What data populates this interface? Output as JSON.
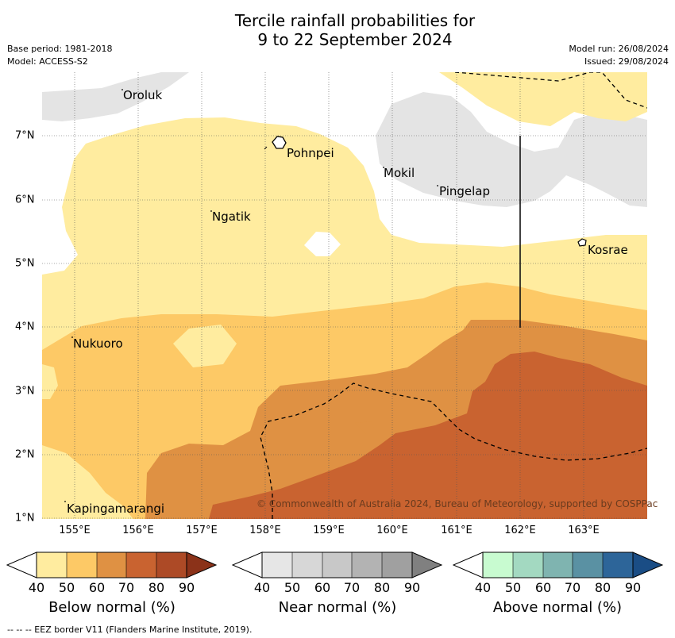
{
  "title_line1": "Tercile rainfall probabilities for",
  "title_line2": "9 to 22 September 2024",
  "base_period": "Base period: 1981-2018",
  "model": "Model: ACCESS-S2",
  "model_run": "Model run: 26/08/2024",
  "issued": "Issued: 29/08/2024",
  "x_ticks": [
    "155°E",
    "156°E",
    "157°E",
    "158°E",
    "159°E",
    "160°E",
    "161°E",
    "162°E",
    "163°E"
  ],
  "y_ticks": [
    "7°N",
    "6°N",
    "5°N",
    "4°N",
    "3°N",
    "2°N",
    "1°N"
  ],
  "places": {
    "oroluk": "Oroluk",
    "pohnpei": "Pohnpei",
    "mokil": "Mokil",
    "pingelap": "Pingelap",
    "ngatik": "Ngatik",
    "kosrae": "Kosrae",
    "nukuoro": "Nukuoro",
    "kapingamarangi": "Kapingamarangi"
  },
  "copyright": "© Commonwealth of Australia 2024, Bureau of Meteorology, supported by COSPPac",
  "colorbars": {
    "ticks": [
      "40",
      "50",
      "60",
      "70",
      "80",
      "90"
    ],
    "below": {
      "label": "Below normal (%)",
      "colors": [
        "#ffffff",
        "#ffec9f",
        "#fdc966",
        "#df9143",
        "#c96330",
        "#ad4a26",
        "#8b3219"
      ]
    },
    "near": {
      "label": "Near normal (%)",
      "colors": [
        "#ffffff",
        "#e6e6e6",
        "#d7d7d7",
        "#c8c8c8",
        "#b3b3b3",
        "#a0a0a0",
        "#808080"
      ]
    },
    "above": {
      "label": "Above normal (%)",
      "colors": [
        "#ffffff",
        "#c8fbd0",
        "#a3d9c1",
        "#7fb4b0",
        "#5a91a3",
        "#2d6599",
        "#1a4d85"
      ]
    }
  },
  "footer": "--  --  -- EEZ border V11 (Flanders Marine Institute, 2019)."
}
